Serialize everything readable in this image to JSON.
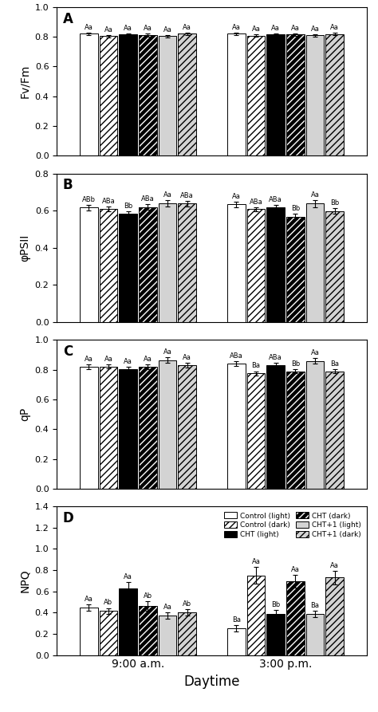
{
  "chart_data": [
    {
      "type": "bar",
      "title": "A",
      "ylabel": "Fv/Fm",
      "categories": [
        "9:00 a.m.",
        "3:00 p.m."
      ],
      "ylim": [
        0.0,
        1.0
      ],
      "yticks": [
        {
          "value": 0.0,
          "label": "0.0"
        },
        0.2,
        0.4,
        0.6,
        0.8,
        {
          "value": 1.0,
          "label": "1.0"
        }
      ],
      "tick_labels": "y",
      "series": [
        {
          "name": "Control (light)",
          "color": "white",
          "values": [
            0.82,
            0.82
          ],
          "errors": [
            0.01,
            0.008
          ],
          "annotations": [
            "Aa",
            "Aa"
          ]
        },
        {
          "name": "Control (dark)",
          "color": "white",
          "values": [
            0.805,
            0.808
          ],
          "errors": [
            0.008,
            0.008
          ],
          "annotations": [
            "Aa",
            "Aa"
          ]
        },
        {
          "name": "CHT (light)",
          "color": "black",
          "values": [
            0.815,
            0.815
          ],
          "errors": [
            0.008,
            0.008
          ],
          "annotations": [
            "Aa",
            "Aa"
          ]
        },
        {
          "name": "CHT (dark)",
          "color": "black",
          "values": [
            0.813,
            0.815
          ],
          "errors": [
            0.01,
            0.008
          ],
          "annotations": [
            "Aa",
            "Aa"
          ]
        },
        {
          "name": "CHT+1 (light)",
          "color": "lightgray",
          "values": [
            0.805,
            0.81
          ],
          "errors": [
            0.008,
            0.008
          ],
          "annotations": [
            "Aa",
            "Aa"
          ]
        },
        {
          "name": "CHT+1 (dark)",
          "color": "lightgray",
          "values": [
            0.82,
            0.818
          ],
          "errors": [
            0.01,
            0.008
          ],
          "annotations": [
            "Aa",
            "Aa"
          ]
        }
      ]
    },
    {
      "type": "bar",
      "title": "B",
      "ylabel": "φPSII",
      "categories": [
        "9:00 a.m.",
        "3:00 p.m."
      ],
      "ylim": [
        0.0,
        0.8
      ],
      "yticks": [
        {
          "value": 0.0,
          "label": "0.0"
        },
        0.2,
        0.4,
        0.6,
        0.8
      ],
      "tick_labels": "y",
      "series": [
        {
          "name": "Control (light)",
          "color": "white",
          "values": [
            0.618,
            0.635
          ],
          "errors": [
            0.015,
            0.015
          ],
          "annotations": [
            "ABb",
            "Aa"
          ]
        },
        {
          "name": "Control (dark)",
          "color": "white",
          "values": [
            0.61,
            0.608
          ],
          "errors": [
            0.012,
            0.012
          ],
          "annotations": [
            "ABa",
            "ABa"
          ]
        },
        {
          "name": "CHT (light)",
          "color": "black",
          "values": [
            0.582,
            0.618
          ],
          "errors": [
            0.015,
            0.015
          ],
          "annotations": [
            "Bb",
            "ABa"
          ]
        },
        {
          "name": "CHT (dark)",
          "color": "black",
          "values": [
            0.62,
            0.568
          ],
          "errors": [
            0.015,
            0.015
          ],
          "annotations": [
            "ABa",
            "Bb"
          ]
        },
        {
          "name": "CHT+1 (light)",
          "color": "lightgray",
          "values": [
            0.64,
            0.638
          ],
          "errors": [
            0.018,
            0.018
          ],
          "annotations": [
            "Aa",
            "Aa"
          ]
        },
        {
          "name": "CHT+1 (dark)",
          "color": "lightgray",
          "values": [
            0.638,
            0.598
          ],
          "errors": [
            0.015,
            0.015
          ],
          "annotations": [
            "ABa",
            "Bb"
          ]
        }
      ]
    },
    {
      "type": "bar",
      "title": "C",
      "ylabel": "qP",
      "categories": [
        "9:00 a.m.",
        "3:00 p.m."
      ],
      "ylim": [
        0.0,
        1.0
      ],
      "yticks": [
        {
          "value": 0.0,
          "label": "0.0"
        },
        0.2,
        0.4,
        0.6,
        0.8,
        {
          "value": 1.0,
          "label": "1.0"
        }
      ],
      "tick_labels": "y",
      "series": [
        {
          "name": "Control (light)",
          "color": "white",
          "values": [
            0.82,
            0.84
          ],
          "errors": [
            0.015,
            0.015
          ],
          "annotations": [
            "Aa",
            "ABa"
          ]
        },
        {
          "name": "Control (dark)",
          "color": "white",
          "values": [
            0.822,
            0.775
          ],
          "errors": [
            0.012,
            0.015
          ],
          "annotations": [
            "Aa",
            "Ba"
          ]
        },
        {
          "name": "CHT (light)",
          "color": "black",
          "values": [
            0.805,
            0.83
          ],
          "errors": [
            0.015,
            0.015
          ],
          "annotations": [
            "Aa",
            "ABa"
          ]
        },
        {
          "name": "CHT (dark)",
          "color": "black",
          "values": [
            0.82,
            0.79
          ],
          "errors": [
            0.015,
            0.015
          ],
          "annotations": [
            "Aa",
            "Bb"
          ]
        },
        {
          "name": "CHT+1 (light)",
          "color": "lightgray",
          "values": [
            0.865,
            0.86
          ],
          "errors": [
            0.018,
            0.018
          ],
          "annotations": [
            "Aa",
            "Aa"
          ]
        },
        {
          "name": "CHT+1 (dark)",
          "color": "lightgray",
          "values": [
            0.83,
            0.79
          ],
          "errors": [
            0.015,
            0.015
          ],
          "annotations": [
            "Aa",
            "Ba"
          ]
        }
      ]
    },
    {
      "type": "bar",
      "title": "D",
      "ylabel": "NPQ",
      "xlabel": "Daytime",
      "categories": [
        "9:00 a.m.",
        "3:00 p.m."
      ],
      "ylim": [
        0.0,
        1.4
      ],
      "yticks": [
        {
          "value": 0.0,
          "label": "0.0"
        },
        0.2,
        0.4,
        0.6,
        0.8,
        {
          "value": 1.0,
          "label": "1.0"
        },
        1.2,
        1.4
      ],
      "legend": "upper right",
      "series": [
        {
          "name": "Control (light)",
          "color": "white",
          "values": [
            0.45,
            0.25
          ],
          "errors": [
            0.03,
            0.03
          ],
          "annotations": [
            "Aa",
            "Ba"
          ]
        },
        {
          "name": "Control (dark)",
          "color": "white",
          "values": [
            0.415,
            0.75
          ],
          "errors": [
            0.028,
            0.08
          ],
          "annotations": [
            "Ab",
            "Aa"
          ]
        },
        {
          "name": "CHT (light)",
          "color": "black",
          "values": [
            0.625,
            0.39
          ],
          "errors": [
            0.065,
            0.035
          ],
          "annotations": [
            "Aa",
            "Bb"
          ]
        },
        {
          "name": "CHT (dark)",
          "color": "black",
          "values": [
            0.46,
            0.695
          ],
          "errors": [
            0.045,
            0.06
          ],
          "annotations": [
            "Ab",
            "Aa"
          ]
        },
        {
          "name": "CHT+1 (light)",
          "color": "lightgray",
          "values": [
            0.37,
            0.39
          ],
          "errors": [
            0.03,
            0.03
          ],
          "annotations": [
            "Aa",
            "Ba"
          ]
        },
        {
          "name": "CHT+1 (dark)",
          "color": "lightgray",
          "values": [
            0.405,
            0.73
          ],
          "errors": [
            0.03,
            0.065
          ],
          "annotations": [
            "Ab",
            "Aa"
          ]
        }
      ]
    }
  ]
}
